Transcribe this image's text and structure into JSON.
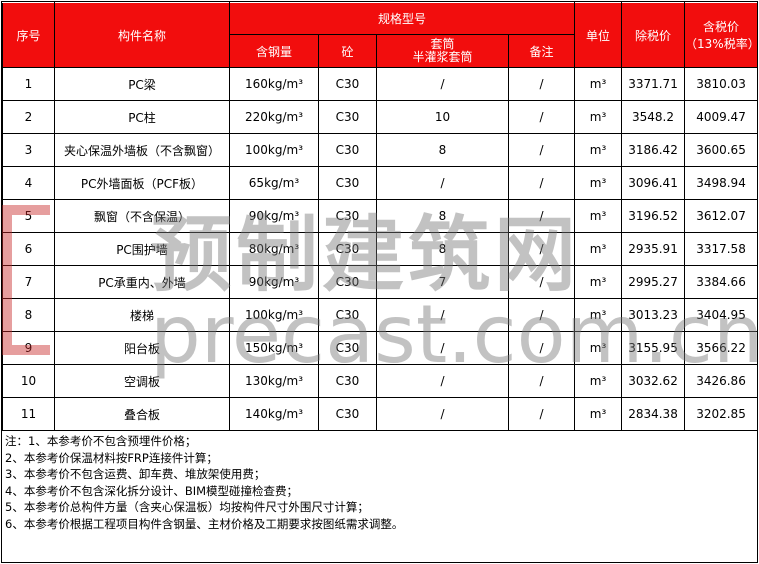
{
  "header": {
    "no": "序号",
    "name": "构件名称",
    "spec": "规格型号",
    "steel": "含钢量",
    "concrete": "砼",
    "sleeve": [
      "套筒",
      "半灌浆套筒"
    ],
    "remark": "备注",
    "unit": "单位",
    "price_ex_tax": "除税价",
    "price_inc_tax": [
      "含税价",
      "（13%税率）"
    ]
  },
  "rows": [
    [
      "1",
      "PC梁",
      "160kg/m³",
      "C30",
      "/",
      "/",
      "m³",
      "3371.71",
      "3810.03"
    ],
    [
      "2",
      "PC柱",
      "220kg/m³",
      "C30",
      "10",
      "/",
      "m³",
      "3548.2",
      "4009.47"
    ],
    [
      "3",
      "夹心保温外墙板（不含飘窗）",
      "100kg/m³",
      "C30",
      "8",
      "/",
      "m³",
      "3186.42",
      "3600.65"
    ],
    [
      "4",
      "PC外墙面板（PCF板）",
      "65kg/m³",
      "C30",
      "/",
      "/",
      "m³",
      "3096.41",
      "3498.94"
    ],
    [
      "5",
      "飘窗（不含保温）",
      "90kg/m³",
      "C30",
      "8",
      "/",
      "m³",
      "3196.52",
      "3612.07"
    ],
    [
      "6",
      "PC围护墙",
      "80kg/m³",
      "C30",
      "8",
      "/",
      "m³",
      "2935.91",
      "3317.58"
    ],
    [
      "7",
      "PC承重内、外墙",
      "90kg/m³",
      "C30",
      "7",
      "/",
      "m³",
      "2995.27",
      "3384.66"
    ],
    [
      "8",
      "楼梯",
      "100kg/m³",
      "C30",
      "/",
      "/",
      "m³",
      "3013.23",
      "3404.95"
    ],
    [
      "9",
      "阳台板",
      "150kg/m³",
      "C30",
      "/",
      "/",
      "m³",
      "3155.95",
      "3566.22"
    ],
    [
      "10",
      "空调板",
      "130kg/m³",
      "C30",
      "/",
      "/",
      "m³",
      "3032.62",
      "3426.86"
    ],
    [
      "11",
      "叠合板",
      "140kg/m³",
      "C30",
      "/",
      "/",
      "m³",
      "2834.38",
      "3202.85"
    ]
  ],
  "notes": [
    "注：1、本参考价不包含预埋件价格；",
    "2、本参考价保温材料按FRP连接件计算；",
    "3、本参考价不包含运费、卸车费、堆放架使用费；",
    "4、本参考价不包含深化拆分设计、BIM模型碰撞检查费；",
    "5、本参考价总构件方量（含夹心保温板）均按构件尺寸外围尺寸计算；",
    "6、本参考价根据工程项目构件含钢量、主材价格及工期要求按图纸需求调整。"
  ],
  "watermark": {
    "title": "预制建筑网",
    "url": "precast.com.cn"
  }
}
